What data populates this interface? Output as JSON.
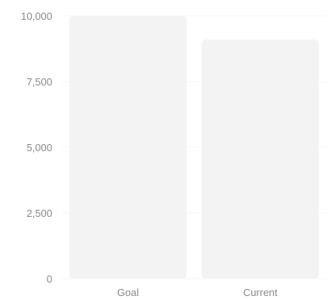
{
  "chart_data": {
    "type": "bar",
    "categories": [
      "Goal",
      "Current"
    ],
    "values": [
      10000,
      9100
    ],
    "title": "",
    "xlabel": "",
    "ylabel": "",
    "ylim": [
      0,
      10000
    ],
    "yticks": [
      0,
      2500,
      5000,
      7500,
      10000
    ],
    "ytick_labels": [
      "0",
      "2,500",
      "5,000",
      "7,500",
      "10,000"
    ],
    "grid": true,
    "colors": {
      "bar": "#f3f3f3",
      "grid": "#f4f4f4",
      "text": "#8a8a8a"
    }
  }
}
